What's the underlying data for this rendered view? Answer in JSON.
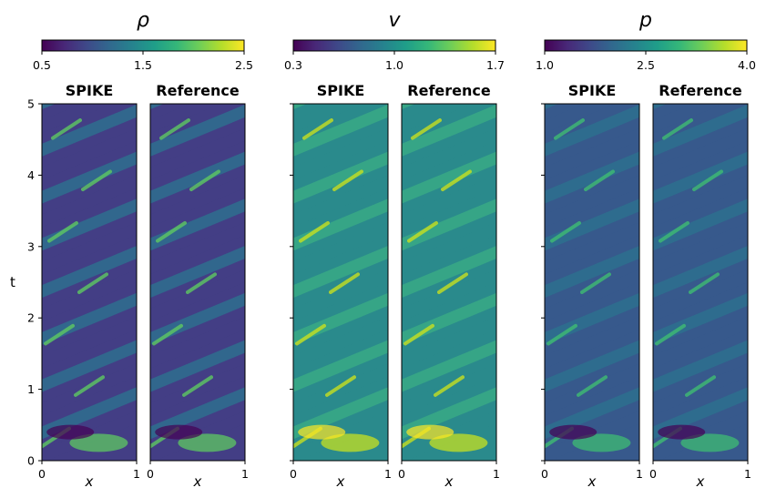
{
  "chart_data": {
    "type": "heatmap",
    "figure": {
      "ylabel": "t",
      "xlabel": "x",
      "ylim": [
        0,
        5
      ],
      "xlim": [
        0,
        1
      ],
      "yticks": [
        "0",
        "1",
        "2",
        "3",
        "4",
        "5"
      ],
      "xticks": [
        "0",
        "1"
      ],
      "colormap": "viridis",
      "viridis_stops": [
        "#440154",
        "#482878",
        "#3e4989",
        "#31688e",
        "#26828e",
        "#1f9e89",
        "#35b779",
        "#6ece58",
        "#b5de2b",
        "#fde725"
      ]
    },
    "groups": [
      {
        "variable": "ρ",
        "colorbar": {
          "range": [
            0.5,
            2.5
          ],
          "ticks": [
            "0.5",
            "1.5",
            "2.5"
          ]
        },
        "panels": [
          "SPIKE",
          "Reference"
        ],
        "show_yticklabels": true
      },
      {
        "variable": "v",
        "colorbar": {
          "range": [
            0.3,
            1.7
          ],
          "ticks": [
            "0.3",
            "1.0",
            "1.7"
          ]
        },
        "panels": [
          "SPIKE",
          "Reference"
        ],
        "show_yticklabels": false
      },
      {
        "variable": "p",
        "colorbar": {
          "range": [
            1.0,
            4.0
          ],
          "ticks": [
            "1.0",
            "2.5",
            "4.0"
          ]
        },
        "panels": [
          "SPIKE",
          "Reference"
        ],
        "show_yticklabels": false
      }
    ]
  }
}
